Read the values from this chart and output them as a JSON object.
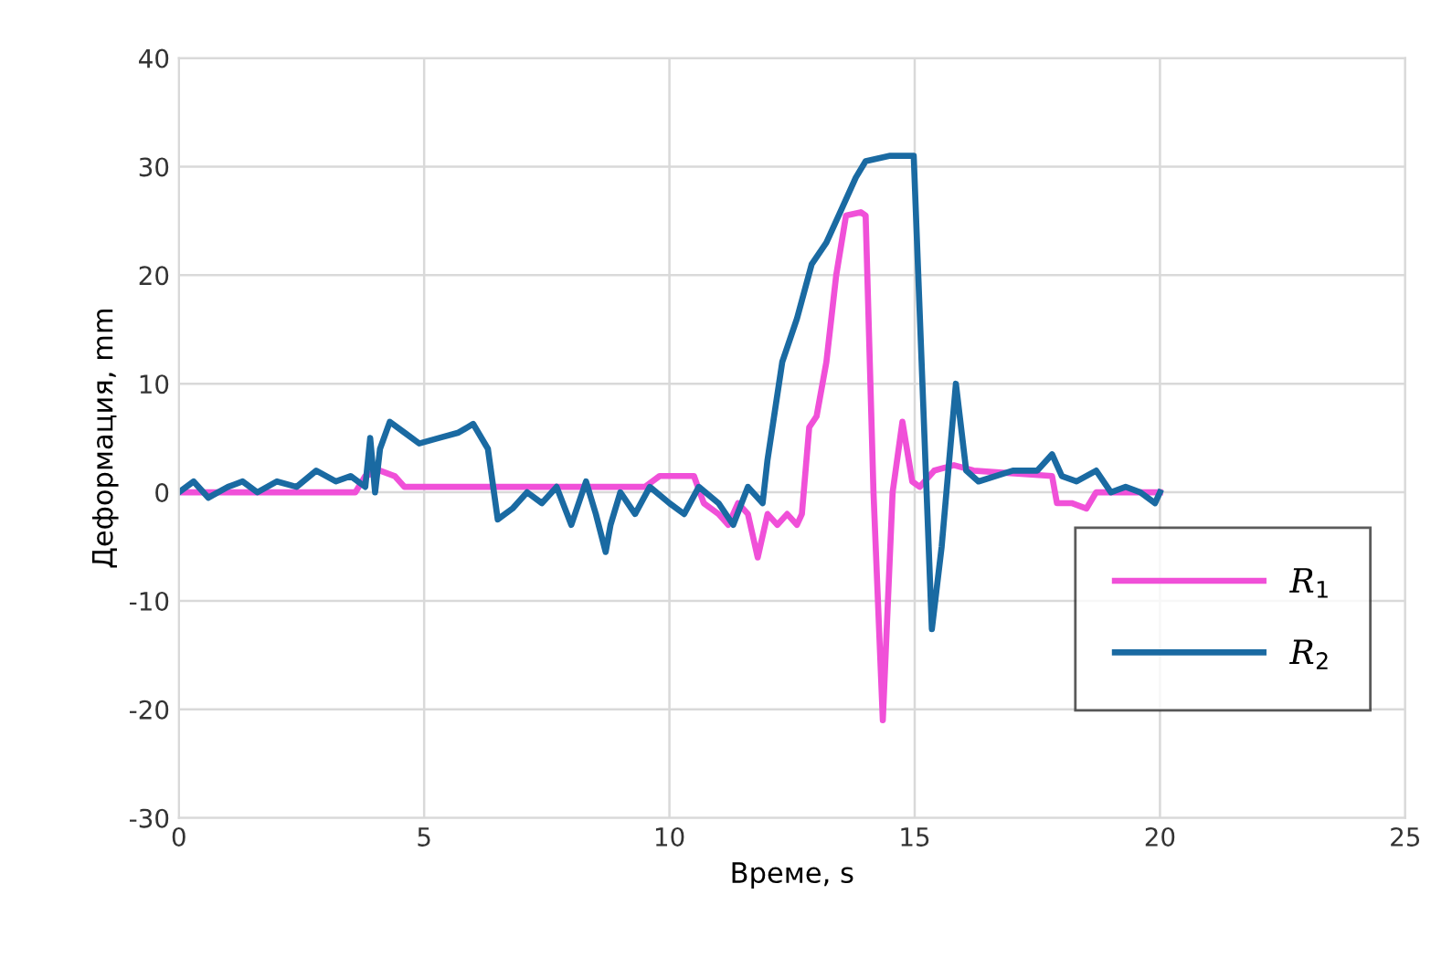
{
  "chart_data": {
    "type": "line",
    "xlabel": "Време, s",
    "ylabel": "Деформация, mm",
    "xlim": [
      0,
      25
    ],
    "xticks": [
      0,
      5,
      10,
      15,
      20,
      25
    ],
    "ylim": [
      -30,
      40
    ],
    "yticks": [
      -30,
      -20,
      -10,
      0,
      10,
      20,
      30,
      40
    ],
    "grid": true,
    "legend": "bottom right",
    "marker": "none",
    "line_style": "solid",
    "series": [
      {
        "name": "R$_{1}$",
        "color": "#f050d8",
        "x": [
          0,
          1,
          2,
          3,
          3.6,
          3.8,
          4.1,
          4.4,
          4.6,
          6,
          8,
          9.5,
          9.8,
          10.5,
          10.7,
          11,
          11.2,
          11.4,
          11.6,
          11.8,
          12,
          12.2,
          12.4,
          12.6,
          12.7,
          12.85,
          13.0,
          13.2,
          13.4,
          13.6,
          13.9,
          14.0,
          14.16,
          14.35,
          14.55,
          14.75,
          14.95,
          15.1,
          15.4,
          15.8,
          16.2,
          17.8,
          17.9,
          18.2,
          18.5,
          18.7,
          19,
          19.5,
          20
        ],
        "values": [
          0,
          0,
          0,
          0,
          0,
          1.5,
          2,
          1.5,
          0.5,
          0.5,
          0.5,
          0.5,
          1.5,
          1.5,
          -1,
          -2,
          -3,
          -1,
          -2,
          -6,
          -2,
          -3,
          -2,
          -3,
          -2,
          6,
          7,
          12,
          20,
          25.5,
          25.8,
          25.5,
          0,
          -21,
          0,
          6.5,
          1,
          0.5,
          2,
          2.5,
          2,
          1.5,
          -1,
          -1,
          -1.5,
          0,
          0,
          0,
          0
        ]
      },
      {
        "name": "R$_{2}$",
        "color": "#1a6aa2",
        "x": [
          0,
          0.3,
          0.6,
          1,
          1.3,
          1.6,
          2,
          2.4,
          2.8,
          3.2,
          3.5,
          3.8,
          3.9,
          4.0,
          4.1,
          4.3,
          4.6,
          4.9,
          5.3,
          5.7,
          6.0,
          6.3,
          6.5,
          6.8,
          7.1,
          7.4,
          7.7,
          8.0,
          8.3,
          8.5,
          8.7,
          8.8,
          9.0,
          9.3,
          9.6,
          10.0,
          10.3,
          10.6,
          11.0,
          11.3,
          11.6,
          11.9,
          12.0,
          12.3,
          12.6,
          12.9,
          13.2,
          13.5,
          13.8,
          14.0,
          14.5,
          14.98,
          15.2,
          15.35,
          15.55,
          15.84,
          16.05,
          16.3,
          17,
          17.5,
          17.8,
          18.0,
          18.3,
          18.7,
          19.0,
          19.3,
          19.6,
          19.9,
          20
        ],
        "values": [
          0,
          1,
          -0.5,
          0.5,
          1,
          0,
          1,
          0.5,
          2,
          1,
          1.5,
          0.5,
          5,
          0,
          4,
          6.5,
          5.5,
          4.5,
          5,
          5.5,
          6.3,
          4,
          -2.5,
          -1.5,
          0,
          -1,
          0.5,
          -3,
          1,
          -2,
          -5.5,
          -3,
          0,
          -2,
          0.5,
          -1,
          -2,
          0.5,
          -1,
          -3,
          0.5,
          -1,
          3,
          12,
          16,
          21,
          23,
          26,
          29,
          30.5,
          31,
          31,
          5,
          -12.6,
          -5,
          10,
          2,
          1,
          2,
          2,
          3.5,
          1.5,
          1,
          2,
          0,
          0.5,
          0,
          -1,
          0
        ]
      }
    ]
  }
}
